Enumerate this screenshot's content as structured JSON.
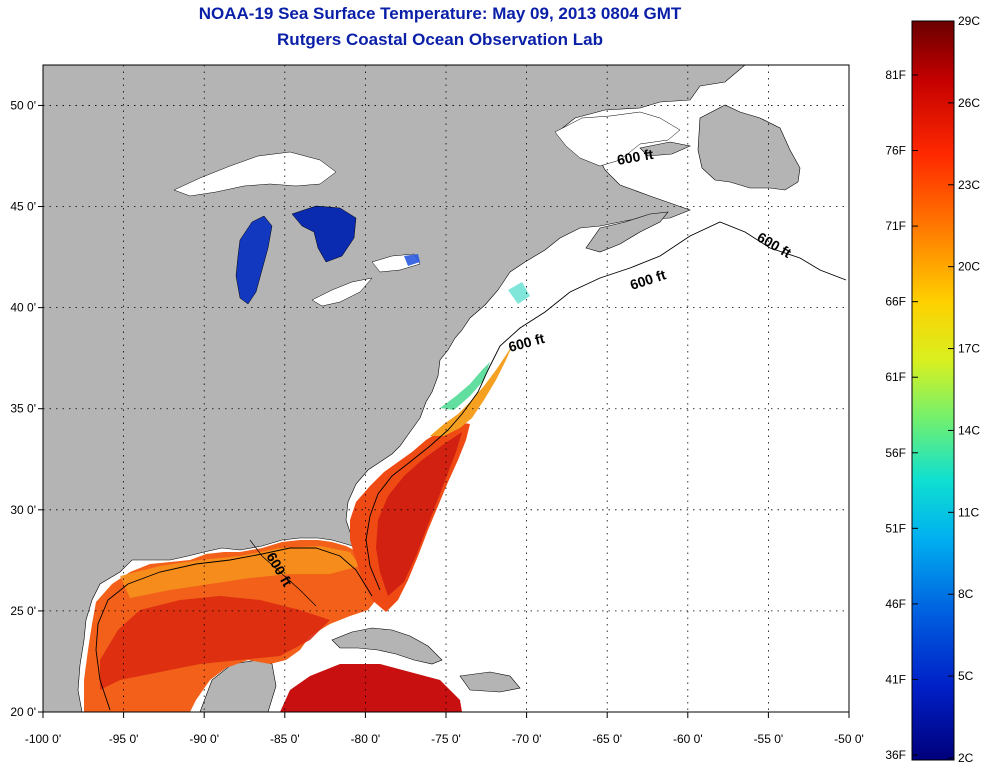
{
  "title": {
    "line1": "NOAA-19 Sea Surface Temperature:  May 09, 2013 0804 GMT",
    "line2": "Rutgers Coastal Ocean Observation Lab"
  },
  "axes": {
    "lon_ticks": [
      "-100 0'",
      "-95 0'",
      "-90 0'",
      "-85 0'",
      "-80 0'",
      "-75 0'",
      "-70 0'",
      "-65 0'",
      "-60 0'",
      "-55 0'",
      "-50 0'"
    ],
    "lat_ticks": [
      "20 0'",
      "25 0'",
      "30 0'",
      "35 0'",
      "40 0'",
      "45 0'",
      "50 0'"
    ],
    "lon_range": [
      -100,
      -50
    ],
    "lat_range": [
      20,
      52
    ],
    "grid": "dotted"
  },
  "colorbar": {
    "celsius": [
      "29C",
      "26C",
      "23C",
      "20C",
      "17C",
      "14C",
      "11C",
      "8C",
      "5C",
      "2C"
    ],
    "fahrenheit": [
      "81F",
      "76F",
      "71F",
      "66F",
      "61F",
      "56F",
      "51F",
      "46F",
      "41F",
      "36F"
    ],
    "colors": [
      "#7a0000",
      "#d40000",
      "#ff3a00",
      "#ff8c00",
      "#ffd400",
      "#d8f020",
      "#80f060",
      "#20e0c0",
      "#00b8f0",
      "#0070e0",
      "#0030d0",
      "#00007a"
    ]
  },
  "contour_label": "600 ft",
  "colors": {
    "land": "#b4b4b4",
    "ocean": "#ffffff",
    "title": "#0a1fa8"
  }
}
